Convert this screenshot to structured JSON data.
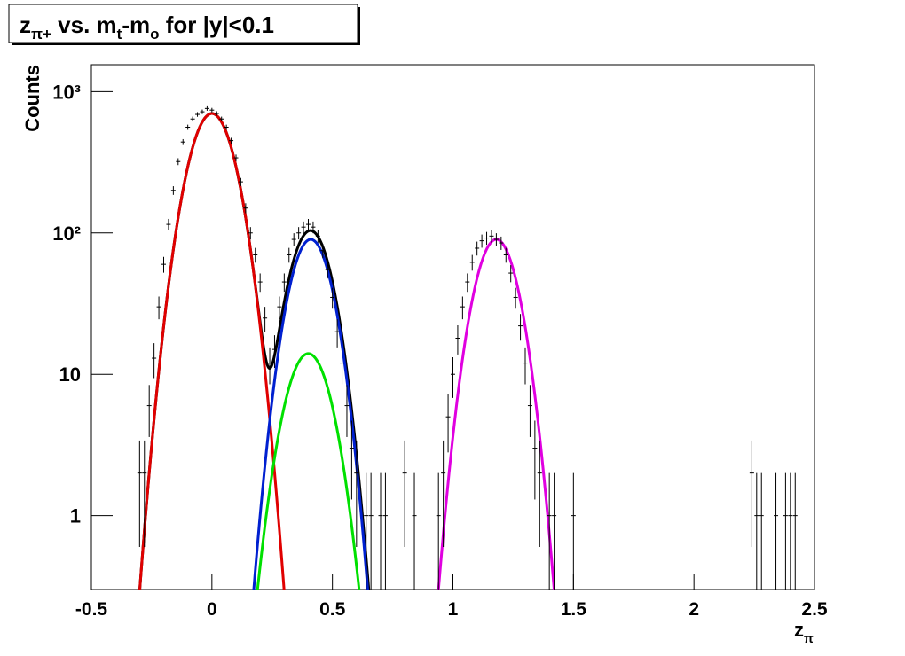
{
  "chart_data": {
    "type": "histogram-fit",
    "title": [
      "z",
      "π+",
      " vs. m",
      "t",
      "-m",
      "o",
      " for |y|<0.1"
    ],
    "xlabel": [
      "z",
      "π"
    ],
    "ylabel": "Counts",
    "log_y": true,
    "xlim": [
      -0.5,
      2.5
    ],
    "ylim": [
      0.3,
      1550
    ],
    "xticks": [
      -0.5,
      0,
      0.5,
      1,
      1.5,
      2,
      2.5
    ],
    "yticks": [
      1,
      10,
      {
        "value": 100,
        "label": "10²"
      },
      {
        "value": 1000,
        "label": "10³"
      }
    ],
    "points": {
      "color": "#000000",
      "x": [
        -0.3,
        -0.28,
        -0.26,
        -0.24,
        -0.22,
        -0.2,
        -0.18,
        -0.16,
        -0.14,
        -0.12,
        -0.1,
        -0.08,
        -0.06,
        -0.04,
        -0.02,
        0.0,
        0.02,
        0.04,
        0.06,
        0.08,
        0.1,
        0.12,
        0.14,
        0.16,
        0.18,
        0.2,
        0.22,
        0.24,
        0.26,
        0.28,
        0.3,
        0.32,
        0.34,
        0.36,
        0.38,
        0.4,
        0.42,
        0.44,
        0.46,
        0.48,
        0.5,
        0.52,
        0.54,
        0.56,
        0.58,
        0.6,
        0.64,
        0.66,
        0.7,
        0.72,
        0.8,
        0.84,
        0.94,
        0.96,
        0.98,
        1.0,
        1.02,
        1.04,
        1.06,
        1.08,
        1.1,
        1.12,
        1.14,
        1.16,
        1.18,
        1.2,
        1.22,
        1.24,
        1.26,
        1.28,
        1.3,
        1.32,
        1.34,
        1.36,
        1.4,
        1.42,
        1.5,
        2.24,
        2.26,
        2.28,
        2.34,
        2.38,
        2.4,
        2.42
      ],
      "values": [
        2,
        2,
        6,
        13,
        30,
        60,
        115,
        200,
        320,
        440,
        560,
        640,
        690,
        720,
        760,
        740,
        700,
        640,
        560,
        450,
        340,
        230,
        150,
        100,
        70,
        45,
        25,
        12,
        15,
        30,
        45,
        70,
        90,
        100,
        110,
        115,
        110,
        95,
        75,
        55,
        35,
        20,
        12,
        6,
        3,
        2,
        1,
        1,
        1,
        1,
        2,
        1,
        1,
        2,
        5,
        10,
        18,
        30,
        45,
        62,
        78,
        88,
        92,
        95,
        90,
        85,
        70,
        52,
        35,
        22,
        12,
        6,
        3,
        2,
        1,
        1,
        1,
        2,
        1,
        1,
        1,
        1,
        1,
        1
      ],
      "errors": [
        1.4,
        1.4,
        2.4,
        3.6,
        5.5,
        7.7,
        10.7,
        14.1,
        17.9,
        21.0,
        23.7,
        25.3,
        26.3,
        26.8,
        27.6,
        27.2,
        26.5,
        25.3,
        23.7,
        21.2,
        18.4,
        15.2,
        12.2,
        10.0,
        8.4,
        6.7,
        5.0,
        3.5,
        3.9,
        5.5,
        6.7,
        8.4,
        9.5,
        10.0,
        10.5,
        10.7,
        10.5,
        9.7,
        8.7,
        7.4,
        5.9,
        4.5,
        3.5,
        2.4,
        1.7,
        1.4,
        1,
        1,
        1,
        1,
        1.4,
        1,
        1,
        1.4,
        2.2,
        3.2,
        4.2,
        5.5,
        6.7,
        7.9,
        8.8,
        9.4,
        9.6,
        9.7,
        9.5,
        9.2,
        8.4,
        7.2,
        5.9,
        4.7,
        3.5,
        2.4,
        1.7,
        1.4,
        1,
        1,
        1,
        1.4,
        1,
        1,
        1,
        1,
        1,
        1
      ]
    },
    "fits": [
      {
        "color": "#e00000",
        "amplitude": 700,
        "mean": 0,
        "sigma": 0.076,
        "range": [
          -0.35,
          0.35
        ]
      },
      {
        "color": "#0020d0",
        "amplitude": 90,
        "mean": 0.41,
        "sigma": 0.07,
        "range": [
          0.1,
          0.72
        ]
      },
      {
        "color": "#00e000",
        "amplitude": 14,
        "mean": 0.4,
        "sigma": 0.076,
        "range": [
          0.1,
          0.7
        ]
      },
      {
        "color": "#e000e0",
        "amplitude": 90,
        "mean": 1.18,
        "sigma": 0.071,
        "range": [
          0.87,
          1.45
        ]
      }
    ],
    "total_color": "#000000",
    "total_of": [
      0,
      1,
      2
    ]
  }
}
